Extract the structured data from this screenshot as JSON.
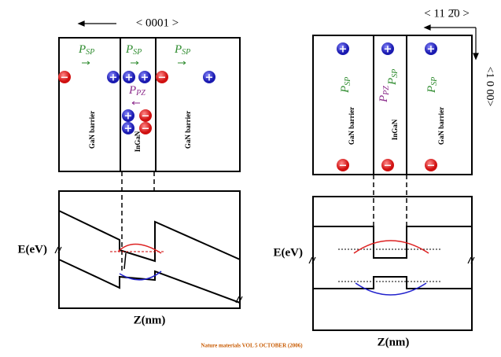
{
  "left": {
    "direction": "< 0001 >",
    "layers": [
      "GaN barrier",
      "InGaN",
      "GaN barrier"
    ],
    "spontaneous": {
      "symbol": "P",
      "subscript": "SP"
    },
    "piezo": {
      "symbol": "P",
      "subscript": "PZ"
    },
    "energy_axis": "E(eV)",
    "position_axis": "Z(nm)"
  },
  "right": {
    "direction_horizontal": "< 11 2̄0 >",
    "direction_vertical": "<1 0 00>",
    "layers": [
      "GaN barrier",
      "InGaN",
      "GaN barrier"
    ],
    "spontaneous": {
      "symbol": "P",
      "subscript": "SP"
    },
    "piezo": {
      "symbol": "P",
      "subscript": "PZ"
    },
    "energy_axis": "E(eV)",
    "position_axis": "Z(nm)"
  },
  "charges": {
    "positive": "+",
    "negative": "−"
  },
  "citation": "Nature materials VOL 5 OCTOBER (2006)"
}
